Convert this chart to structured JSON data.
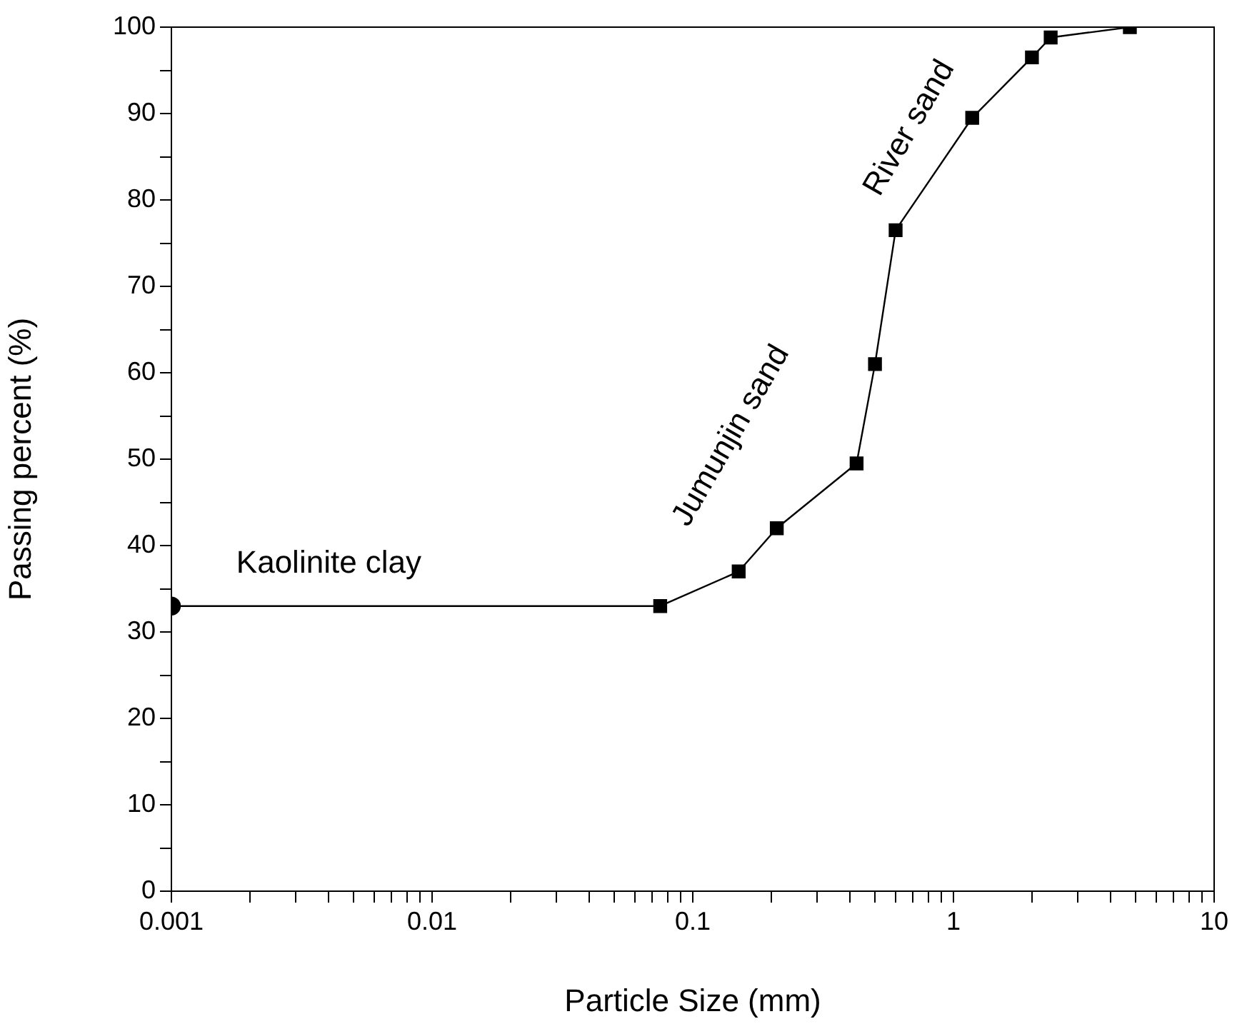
{
  "chart_data": {
    "type": "scatter",
    "xlabel": "Particle Size (mm)",
    "ylabel": "Passing percent (%)",
    "log": "x",
    "grid": false,
    "legend": false,
    "xlim": [
      0.001,
      10
    ],
    "ylim": [
      0,
      100
    ],
    "xticks": [
      0.001,
      {
        "value": 0.002,
        "label": null
      },
      {
        "value": 0.003,
        "label": null
      },
      {
        "value": 0.004,
        "label": null
      },
      {
        "value": 0.005,
        "label": null
      },
      {
        "value": 0.006,
        "label": null
      },
      {
        "value": 0.007,
        "label": null
      },
      {
        "value": 0.008,
        "label": null
      },
      {
        "value": 0.009,
        "label": null
      },
      0.01,
      {
        "value": 0.02,
        "label": null
      },
      {
        "value": 0.03,
        "label": null
      },
      {
        "value": 0.04,
        "label": null
      },
      {
        "value": 0.05,
        "label": null
      },
      {
        "value": 0.06,
        "label": null
      },
      {
        "value": 0.07,
        "label": null
      },
      {
        "value": 0.08,
        "label": null
      },
      {
        "value": 0.09,
        "label": null
      },
      0.1,
      {
        "value": 0.2,
        "label": null
      },
      {
        "value": 0.3,
        "label": null
      },
      {
        "value": 0.4,
        "label": null
      },
      {
        "value": 0.5,
        "label": null
      },
      {
        "value": 0.6,
        "label": null
      },
      {
        "value": 0.7,
        "label": null
      },
      {
        "value": 0.8,
        "label": null
      },
      {
        "value": 0.9,
        "label": null
      },
      1,
      {
        "value": 2,
        "label": null
      },
      {
        "value": 3,
        "label": null
      },
      {
        "value": 4,
        "label": null
      },
      {
        "value": 5,
        "label": null
      },
      {
        "value": 6,
        "label": null
      },
      {
        "value": 7,
        "label": null
      },
      {
        "value": 8,
        "label": null
      },
      {
        "value": 9,
        "label": null
      },
      10
    ],
    "yticks": [
      0,
      {
        "value": 5,
        "label": null
      },
      10,
      {
        "value": 15,
        "label": null
      },
      20,
      {
        "value": 25,
        "label": null
      },
      30,
      {
        "value": 35,
        "label": null
      },
      40,
      {
        "value": 45,
        "label": null
      },
      50,
      {
        "value": 55,
        "label": null
      },
      60,
      {
        "value": 65,
        "label": null
      },
      70,
      {
        "value": 75,
        "label": null
      },
      80,
      {
        "value": 85,
        "label": null
      },
      90,
      {
        "value": 95,
        "label": null
      },
      100
    ],
    "series": [
      {
        "type": "line",
        "color": "#000000",
        "marker": "none",
        "line_style": "solid",
        "x": [
          0.001,
          0.075,
          0.15,
          0.21,
          0.425,
          0.5,
          0.6,
          1.18,
          2,
          2.36,
          4.75
        ],
        "values": [
          33,
          33,
          37,
          42,
          49.5,
          61,
          76.5,
          89.5,
          96.5,
          98.8,
          100
        ]
      },
      {
        "color": "#000000",
        "marker": "circle",
        "x": [
          0.001
        ],
        "values": [
          33
        ]
      },
      {
        "color": "#000000",
        "marker": "square",
        "x": [
          0.075,
          0.15,
          0.21,
          0.425,
          0.5,
          0.6,
          1.18,
          2,
          2.36,
          4.75
        ],
        "values": [
          33,
          37,
          42,
          49.5,
          61,
          76.5,
          89.5,
          96.5,
          98.8,
          100
        ]
      }
    ],
    "annotations": [
      "Kaolinite clay",
      "Jumunjin sand",
      "River sand"
    ]
  }
}
